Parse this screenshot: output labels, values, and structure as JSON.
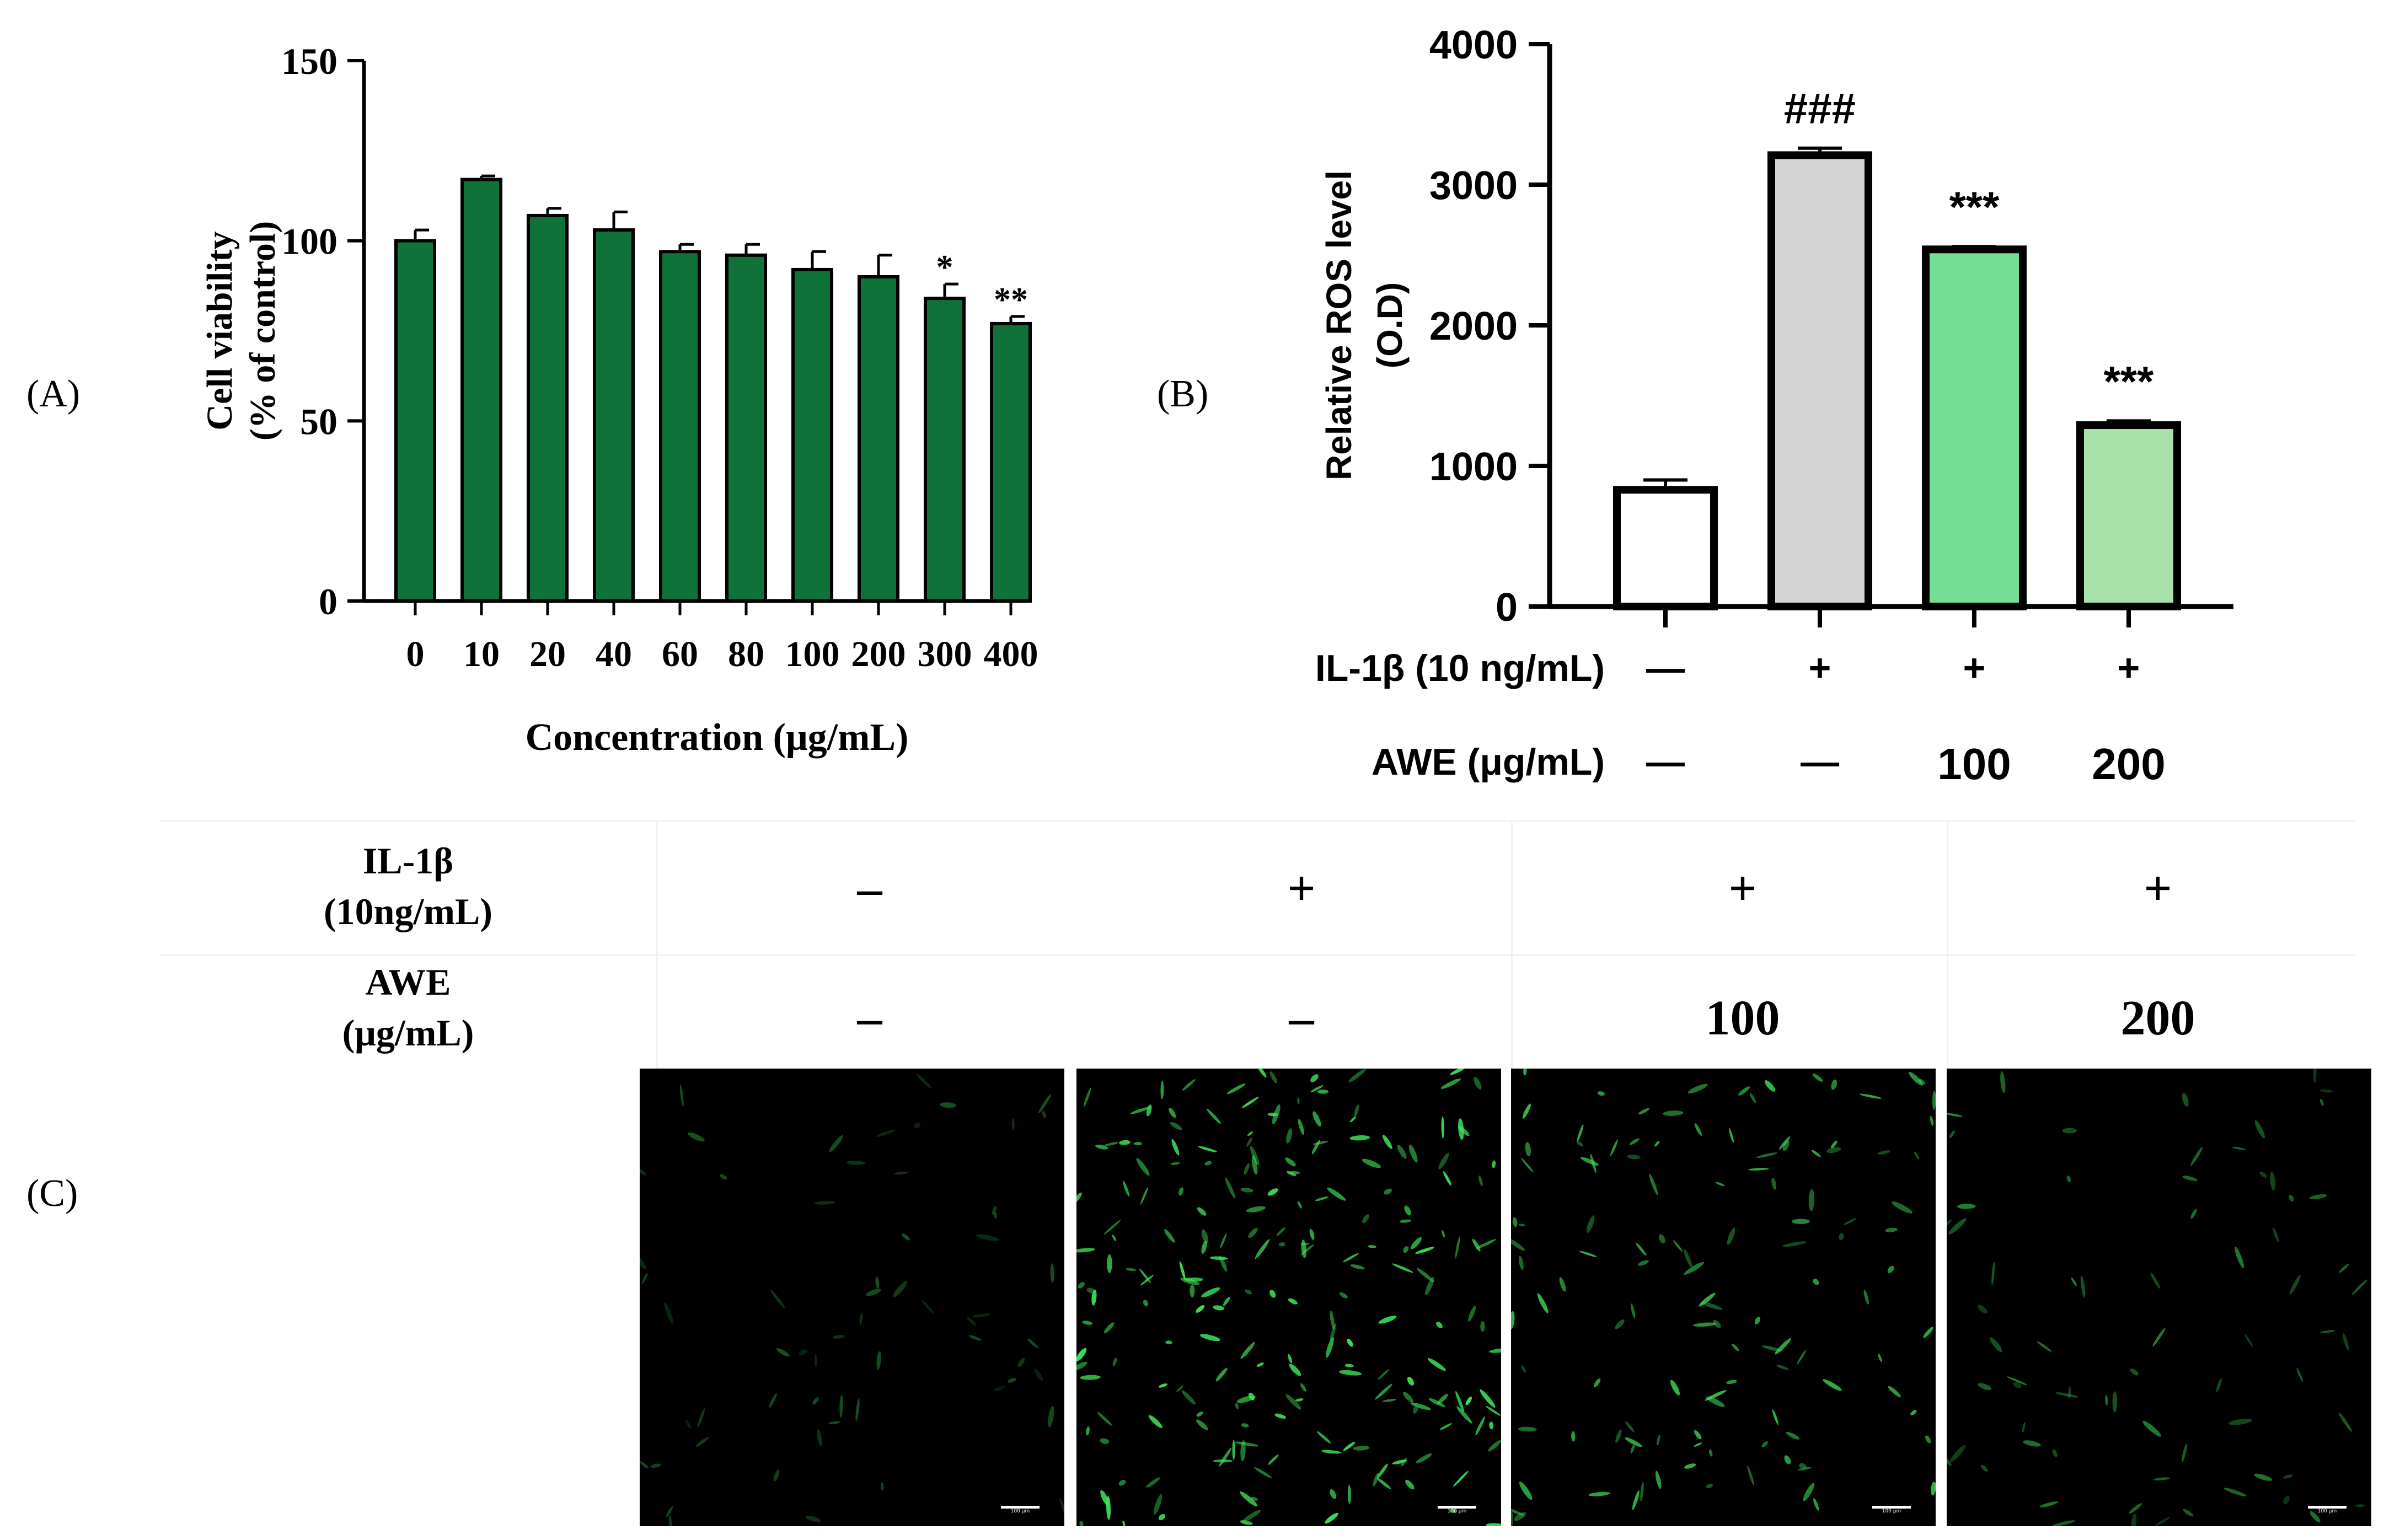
{
  "panel_labels": {
    "a": "(A)",
    "b": "(B)",
    "c": "(C)"
  },
  "colors": {
    "bar_a": "#0e7239",
    "bar_b": [
      "#ffffff",
      "#d4d4d4",
      "#73de94",
      "#a8e2aa"
    ],
    "fluor": "#3ee65a"
  },
  "chart_data": [
    {
      "type": "bar",
      "panel": "A",
      "title": "",
      "xlabel": "Concentration (μg/mL)",
      "ylabel_lines": [
        "Cell viability",
        "(% of control)"
      ],
      "ylim": [
        0,
        150
      ],
      "yticks": [
        "0",
        "50",
        "100",
        "150"
      ],
      "categories": [
        "0",
        "10",
        "20",
        "40",
        "60",
        "80",
        "100",
        "200",
        "300",
        "400"
      ],
      "values": [
        100,
        117,
        107,
        103,
        97,
        96,
        92,
        90,
        84,
        77
      ],
      "errors": [
        3,
        1,
        2,
        5,
        2,
        3,
        5,
        6,
        4,
        2
      ],
      "annotations": [
        "",
        "",
        "",
        "",
        "",
        "",
        "",
        "",
        "*",
        "**"
      ]
    },
    {
      "type": "bar",
      "panel": "B",
      "title": "",
      "ylabel_lines": [
        "Relative ROS level",
        "(O.D)"
      ],
      "ylim": [
        0,
        4000
      ],
      "yticks": [
        "0",
        "1000",
        "2000",
        "3000",
        "4000"
      ],
      "values": [
        830,
        3210,
        2540,
        1290
      ],
      "errors": [
        70,
        50,
        20,
        30
      ],
      "annotations": [
        "",
        "###",
        "***",
        "***"
      ],
      "row_labels": [
        "IL-1β (10 ng/mL)",
        "AWE (μg/mL)"
      ],
      "rows": [
        [
          "—",
          "+",
          "+",
          "+"
        ],
        [
          "—",
          "—",
          "100",
          "200"
        ]
      ]
    }
  ],
  "panel_c": {
    "row_labels": [
      [
        "IL-1β",
        "(10ng/mL)"
      ],
      [
        "AWE",
        "(μg/mL)"
      ]
    ],
    "il1b": [
      "–",
      "+",
      "+",
      "+"
    ],
    "awe": [
      "–",
      "–",
      "100",
      "200"
    ],
    "scale_label": "100 μm",
    "cell_counts": [
      60,
      220,
      120,
      70
    ]
  }
}
